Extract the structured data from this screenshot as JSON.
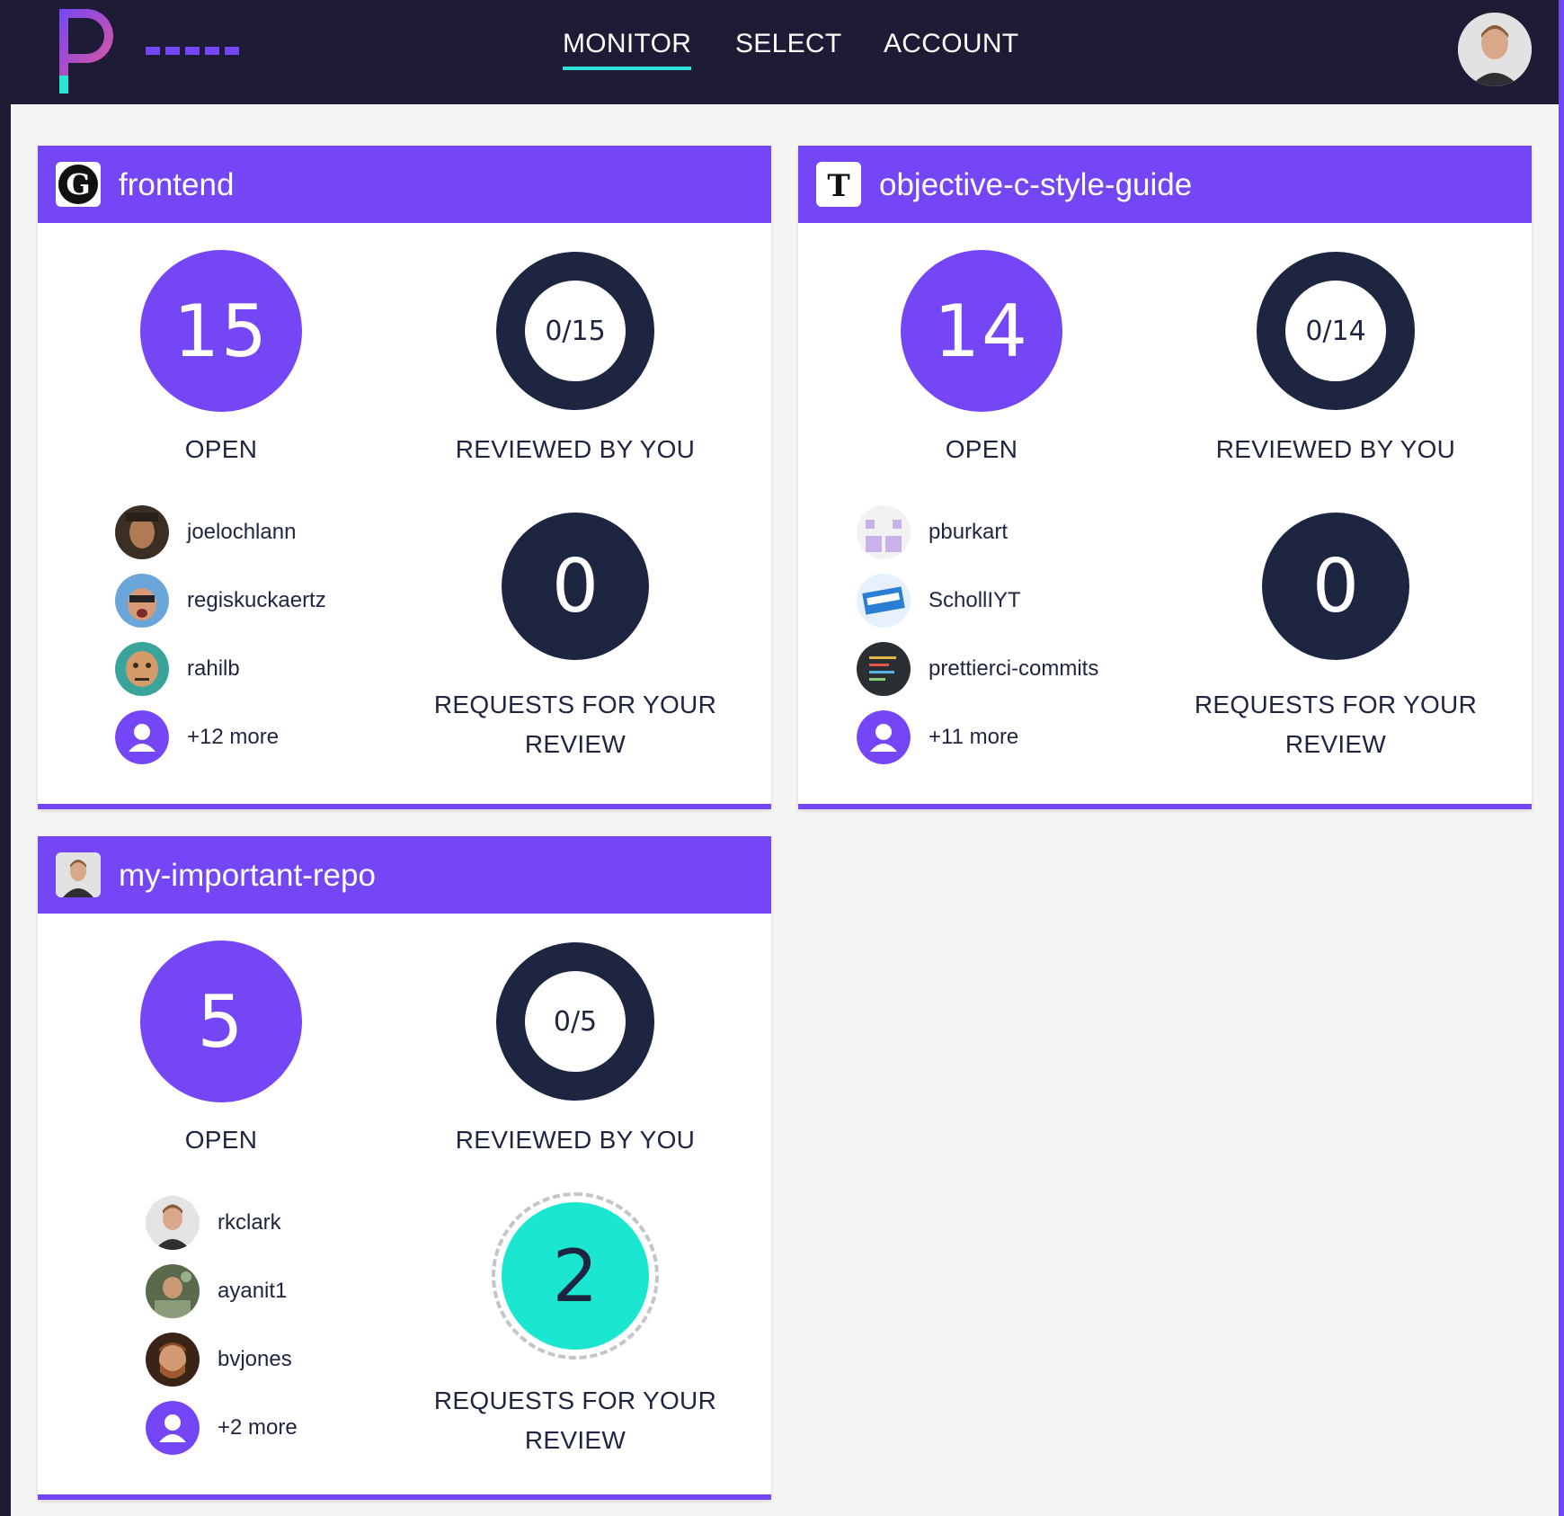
{
  "nav": {
    "items": [
      "MONITOR",
      "SELECT",
      "ACCOUNT"
    ],
    "active": "MONITOR"
  },
  "colors": {
    "brand_purple": "#7546f5",
    "navy": "#1e2540",
    "topbar": "#1d1b36",
    "accent_teal": "#1be7d0",
    "underline_teal": "#2de3d8"
  },
  "labels": {
    "open": "OPEN",
    "reviewed": "REVIEWED BY YOU",
    "requests": "REQUESTS FOR YOUR REVIEW"
  },
  "repos": [
    {
      "name": "frontend",
      "open": "15",
      "reviewed": "0/15",
      "reviewed_fraction": 0,
      "requests": "0",
      "contributors": [
        "joelochlann",
        "regiskuckaertz",
        "rahilb"
      ],
      "more": "+12 more"
    },
    {
      "name": "objective-c-style-guide",
      "open": "14",
      "reviewed": "0/14",
      "reviewed_fraction": 0,
      "requests": "0",
      "contributors": [
        "pburkart",
        "SchollIYT",
        "prettierci-commits"
      ],
      "more": "+11 more"
    },
    {
      "name": "my-important-repo",
      "open": "5",
      "reviewed": "0/5",
      "reviewed_fraction": 0,
      "requests": "2",
      "contributors": [
        "rkclark",
        "ayanit1",
        "bvjones"
      ],
      "more": "+2 more"
    }
  ]
}
